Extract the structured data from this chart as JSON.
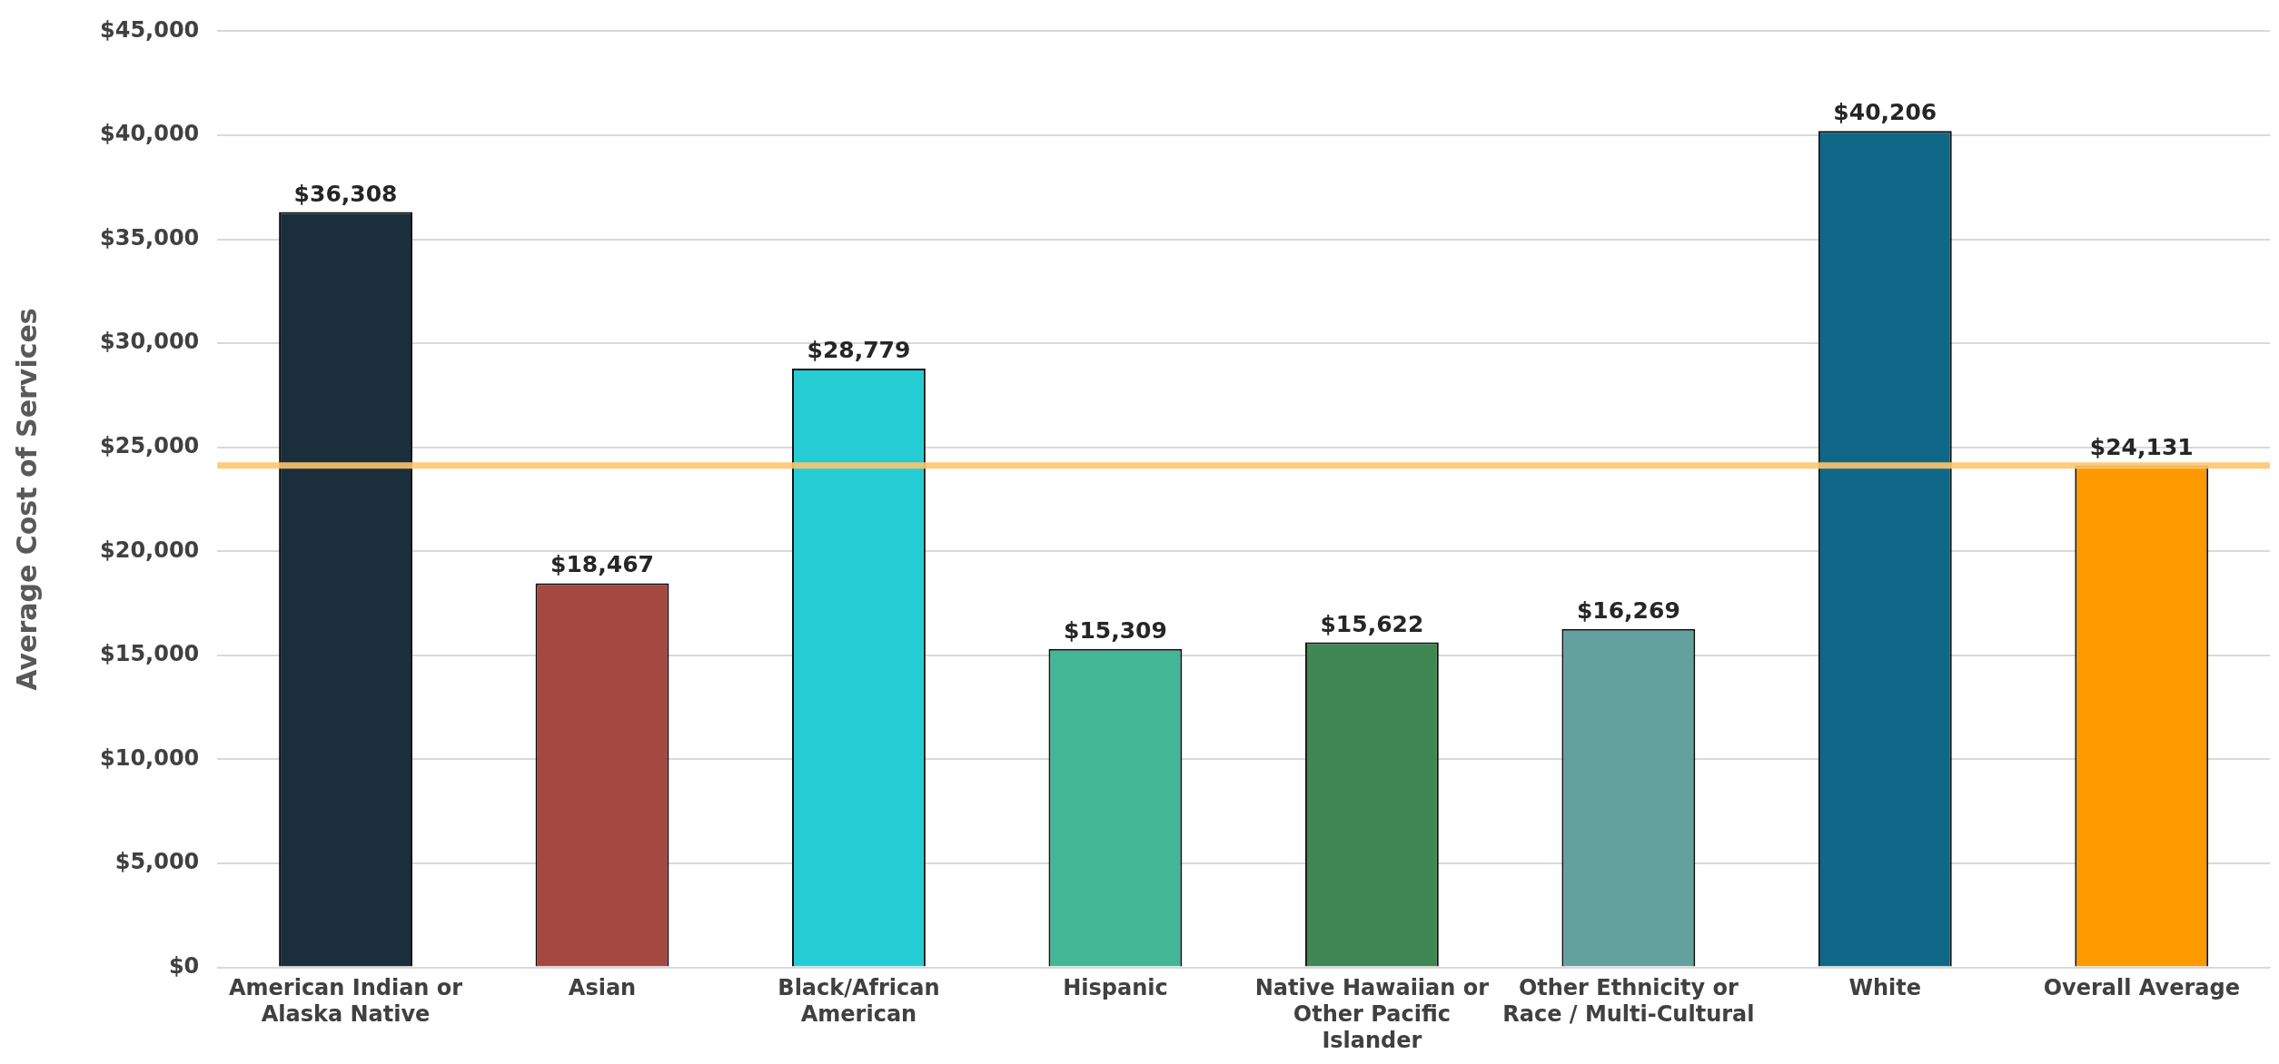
{
  "chart_data": {
    "type": "bar",
    "ylabel": "Average Cost of Services",
    "categories": [
      "American Indian or Alaska Native",
      "Asian",
      "Black/African American",
      "Hispanic",
      "Native Hawaiian or Other Pacific Islander",
      "Other Ethnicity or Race / Multi-Cultural",
      "White",
      "Overall Average"
    ],
    "values": [
      36308,
      18467,
      28779,
      15309,
      15622,
      16269,
      40206,
      24131
    ],
    "value_labels": [
      "$36,308",
      "$18,467",
      "$28,779",
      "$15,309",
      "$15,622",
      "$16,269",
      "$40,206",
      "$24,131"
    ],
    "colors": [
      "#1b2e3c",
      "#a64842",
      "#26ccd4",
      "#43b795",
      "#3f8753",
      "#63a19e",
      "#0f6887",
      "#ff9900"
    ],
    "ylim": [
      0,
      45000
    ],
    "yticks": [
      {
        "value": 0,
        "label": "$0"
      },
      {
        "value": 5000,
        "label": "$5,000"
      },
      {
        "value": 10000,
        "label": "$10,000"
      },
      {
        "value": 15000,
        "label": "$15,000"
      },
      {
        "value": 20000,
        "label": "$20,000"
      },
      {
        "value": 25000,
        "label": "$25,000"
      },
      {
        "value": 30000,
        "label": "$30,000"
      },
      {
        "value": 35000,
        "label": "$35,000"
      },
      {
        "value": 40000,
        "label": "$40,000"
      },
      {
        "value": 45000,
        "label": "$45,000"
      }
    ],
    "ref_lines": [
      {
        "axis": "y",
        "value": 24131,
        "color": "#ffc56e"
      }
    ],
    "grid": "y",
    "legend": false
  }
}
